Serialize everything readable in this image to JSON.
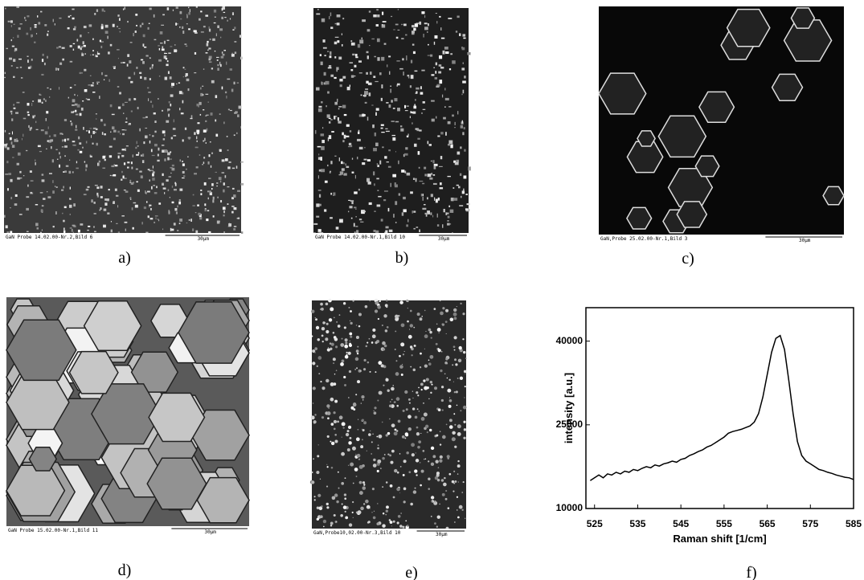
{
  "panels": [
    {
      "caption": "a)",
      "micro_label": "GaN Probe 14.02.00-Nr.2,Bild 6",
      "scale": "30µm"
    },
    {
      "caption": "b)",
      "micro_label": "GaN Probe 14.02.00-Nr.1,Bild 10",
      "scale": "30µm"
    },
    {
      "caption": "c)",
      "micro_label": "GaN,Probe 25.02.00-Nr.1,Bild 3",
      "scale": "30µm"
    },
    {
      "caption": "d)",
      "micro_label": "GaN Probe 15.02.00-Nr.1,Bild 11",
      "scale": "30µm"
    },
    {
      "caption": "e)",
      "micro_label": "GaN,Probe10,02.00-Nr.3,Bild 10",
      "scale": "30µm"
    }
  ],
  "chart_data": {
    "type": "line",
    "caption": "f)",
    "x_label": "Raman shift [1/cm]",
    "y_label": "intensity [a.u.]",
    "x": [
      524,
      525,
      526,
      527,
      528,
      529,
      530,
      531,
      532,
      533,
      534,
      535,
      536,
      537,
      538,
      539,
      540,
      541,
      542,
      543,
      544,
      545,
      546,
      547,
      548,
      549,
      550,
      551,
      552,
      553,
      554,
      555,
      556,
      557,
      558,
      559,
      560,
      561,
      562,
      563,
      564,
      565,
      566,
      567,
      568,
      569,
      570,
      571,
      572,
      573,
      574,
      575,
      576,
      577,
      578,
      579,
      580,
      581,
      582,
      583,
      584,
      585
    ],
    "values": [
      15000,
      15500,
      16000,
      15500,
      16200,
      16000,
      16500,
      16200,
      16700,
      16500,
      17000,
      16800,
      17200,
      17500,
      17300,
      17800,
      17600,
      18000,
      18200,
      18500,
      18300,
      18800,
      19000,
      19500,
      19800,
      20200,
      20500,
      21000,
      21300,
      21800,
      22300,
      22800,
      23500,
      23800,
      24000,
      24200,
      24500,
      24800,
      25500,
      27000,
      30000,
      34000,
      38000,
      40500,
      41000,
      38500,
      33000,
      27000,
      22000,
      19500,
      18500,
      18000,
      17500,
      17000,
      16800,
      16500,
      16300,
      16000,
      15800,
      15600,
      15500,
      15200
    ],
    "color": "#000000",
    "xlim": [
      523,
      585
    ],
    "xticks": [
      525,
      535,
      545,
      555,
      565,
      575,
      585
    ],
    "ylim": [
      10000,
      46000
    ],
    "yticks": [
      10000,
      25000,
      40000
    ]
  }
}
